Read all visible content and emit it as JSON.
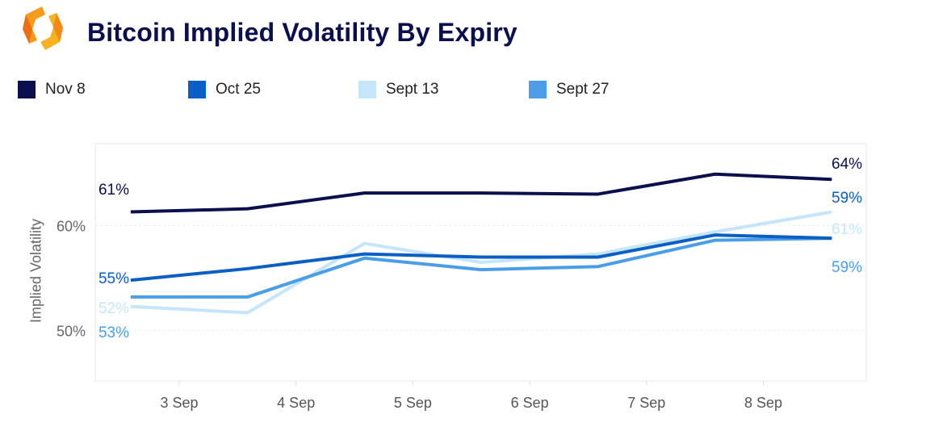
{
  "header": {
    "title": "Bitcoin Implied Volatility By Expiry",
    "logo_icon": "orange-hexagon-logo"
  },
  "chart_data": {
    "type": "line",
    "title": "Bitcoin Implied Volatility By Expiry",
    "xlabel": "",
    "ylabel": "Implied Volatility",
    "x": [
      "2 Sep 14:00",
      "3 Sep 14:00",
      "4 Sep 14:00",
      "5 Sep 14:00",
      "6 Sep 14:00",
      "7 Sep 14:00",
      "8 Sep 14:00"
    ],
    "x_ticks": [
      "3 Sep",
      "4 Sep",
      "5 Sep",
      "6 Sep",
      "7 Sep",
      "8 Sep"
    ],
    "y_ticks": [
      "50%",
      "60%"
    ],
    "ylim": [
      45.2,
      67.8
    ],
    "grid": true,
    "legend_position": "top-left",
    "series": [
      {
        "name": "Nov 8",
        "color": "#0b0f4d",
        "values": [
          61.3,
          61.6,
          63.1,
          63.1,
          63.0,
          64.9,
          64.4
        ],
        "start_label": "61%",
        "end_label": "64%"
      },
      {
        "name": "Oct 25",
        "color": "#0a5fc4",
        "values": [
          54.8,
          55.9,
          57.3,
          57.0,
          57.0,
          59.1,
          58.8
        ],
        "start_label": "55%",
        "end_label": "59%"
      },
      {
        "name": "Sept 13",
        "color": "#c5e6fa",
        "values": [
          52.3,
          51.7,
          58.3,
          56.5,
          57.3,
          59.4,
          61.3
        ],
        "start_label": "52%",
        "end_label": "61%"
      },
      {
        "name": "Sept 27",
        "color": "#4a9ee8",
        "values": [
          53.2,
          53.2,
          56.9,
          55.8,
          56.1,
          58.6,
          58.8
        ],
        "start_label": "53%",
        "end_label": "59%"
      }
    ]
  }
}
